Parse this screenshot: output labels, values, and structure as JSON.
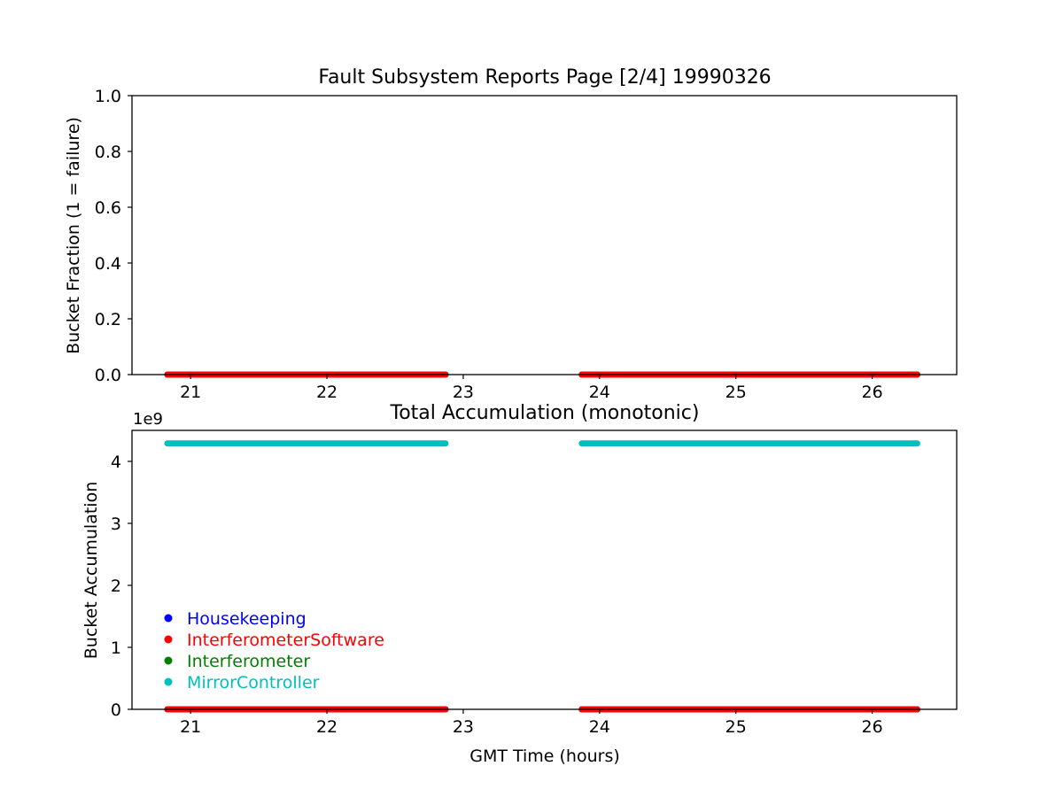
{
  "chart_data": [
    {
      "type": "scatter",
      "title": "Fault Subsystem Reports Page [2/4] 19990326",
      "xlabel": "",
      "ylabel": "Bucket Fraction (1 = failure)",
      "xlim": [
        20.57,
        26.62
      ],
      "ylim": [
        0.0,
        1.0
      ],
      "xticks": [
        "21",
        "22",
        "23",
        "24",
        "25",
        "26"
      ],
      "yticks": [
        "0.0",
        "0.2",
        "0.4",
        "0.6",
        "0.8",
        "1.0"
      ],
      "grid": false,
      "series": [
        {
          "name": "Housekeeping",
          "color": "#0000ff",
          "segments": [
            {
              "x": [
                20.83,
                22.87
              ],
              "y": 0
            },
            {
              "x": [
                23.87,
                26.33
              ],
              "y": 0
            }
          ]
        },
        {
          "name": "Interferometer",
          "color": "#008000",
          "segments": [
            {
              "x": [
                20.83,
                22.87
              ],
              "y": 0
            },
            {
              "x": [
                23.87,
                26.33
              ],
              "y": 0
            }
          ]
        },
        {
          "name": "MirrorController",
          "color": "#00bfbf",
          "segments": [
            {
              "x": [
                20.83,
                22.87
              ],
              "y": 0
            },
            {
              "x": [
                23.87,
                26.33
              ],
              "y": 0
            }
          ]
        },
        {
          "name": "InterferometerSoftware",
          "color": "#ff0000",
          "segments": [
            {
              "x": [
                20.83,
                22.87
              ],
              "y": 0
            },
            {
              "x": [
                23.87,
                26.33
              ],
              "y": 0
            }
          ]
        }
      ]
    },
    {
      "type": "scatter",
      "title": "Total Accumulation (monotonic)",
      "xlabel": "GMT Time (hours)",
      "ylabel": "Bucket Accumulation",
      "offset_text": "1e9",
      "xlim": [
        20.57,
        26.62
      ],
      "ylim": [
        0,
        4.5
      ],
      "xticks": [
        "21",
        "22",
        "23",
        "24",
        "25",
        "26"
      ],
      "yticks": [
        "0",
        "1",
        "2",
        "3",
        "4"
      ],
      "grid": false,
      "legend": "lower-left",
      "series": [
        {
          "name": "Housekeeping",
          "color": "#0000ff",
          "segments": [
            {
              "x": [
                20.83,
                22.87
              ],
              "y": 0
            },
            {
              "x": [
                23.87,
                26.33
              ],
              "y": 0
            }
          ]
        },
        {
          "name": "Interferometer",
          "color": "#008000",
          "segments": [
            {
              "x": [
                20.83,
                22.87
              ],
              "y": 0
            },
            {
              "x": [
                23.87,
                26.33
              ],
              "y": 0
            }
          ]
        },
        {
          "name": "InterferometerSoftware",
          "color": "#ff0000",
          "segments": [
            {
              "x": [
                20.83,
                22.87
              ],
              "y": 0
            },
            {
              "x": [
                23.87,
                26.33
              ],
              "y": 0
            }
          ]
        },
        {
          "name": "MirrorController",
          "color": "#00bfbf",
          "segments": [
            {
              "x": [
                20.83,
                22.87
              ],
              "y": 4.29
            },
            {
              "x": [
                23.87,
                26.33
              ],
              "y": 4.29
            }
          ]
        }
      ],
      "legend_order": [
        "Housekeeping",
        "InterferometerSoftware",
        "Interferometer",
        "MirrorController"
      ]
    }
  ]
}
